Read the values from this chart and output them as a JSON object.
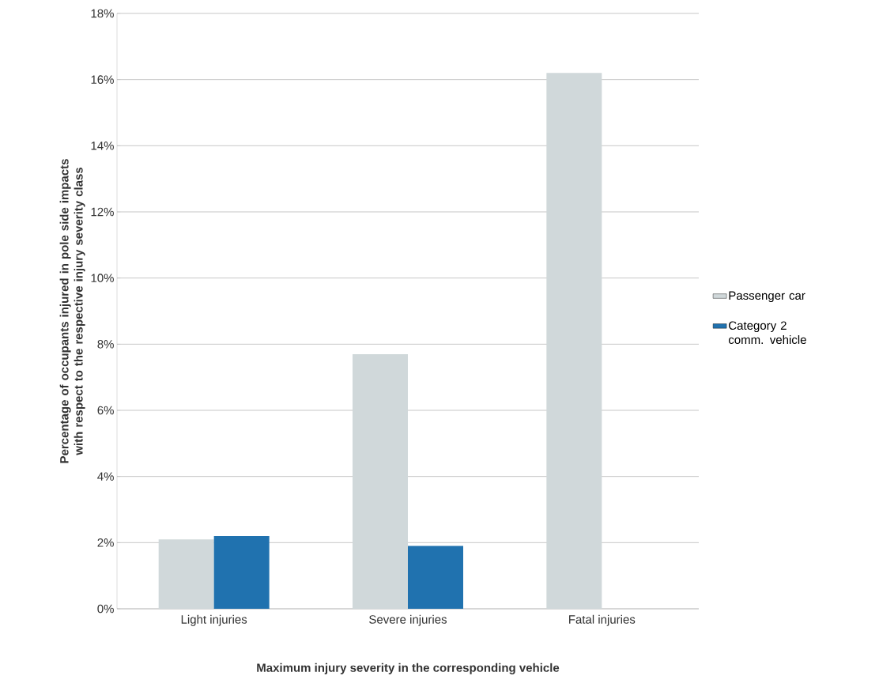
{
  "chart_data": {
    "type": "bar",
    "categories": [
      "Light injuries",
      "Severe injuries",
      "Fatal injuries"
    ],
    "series": [
      {
        "name": "Passenger car",
        "color": "#d0d8da",
        "values": [
          2.1,
          7.7,
          16.2
        ]
      },
      {
        "name": "Category 2 comm. vehicle",
        "color": "#2072af",
        "values": [
          2.2,
          1.9,
          0
        ]
      }
    ],
    "xlabel": "Maximum injury severity in the corresponding vehicle",
    "ylabel": "Percentage of occupants injured in pole side impacts with respect to the respective injury severity class",
    "ylim": [
      0,
      18
    ],
    "yticks": [
      {
        "value": 0,
        "label": "0%"
      },
      {
        "value": 2,
        "label": "2%"
      },
      {
        "value": 4,
        "label": "4%"
      },
      {
        "value": 6,
        "label": "6%"
      },
      {
        "value": 8,
        "label": "8%"
      },
      {
        "value": 10,
        "label": "10%"
      },
      {
        "value": 12,
        "label": "12%"
      },
      {
        "value": 14,
        "label": "14%"
      },
      {
        "value": 16,
        "label": "16%"
      },
      {
        "value": 18,
        "label": "18%"
      }
    ],
    "grid": "y",
    "legend": "right"
  }
}
